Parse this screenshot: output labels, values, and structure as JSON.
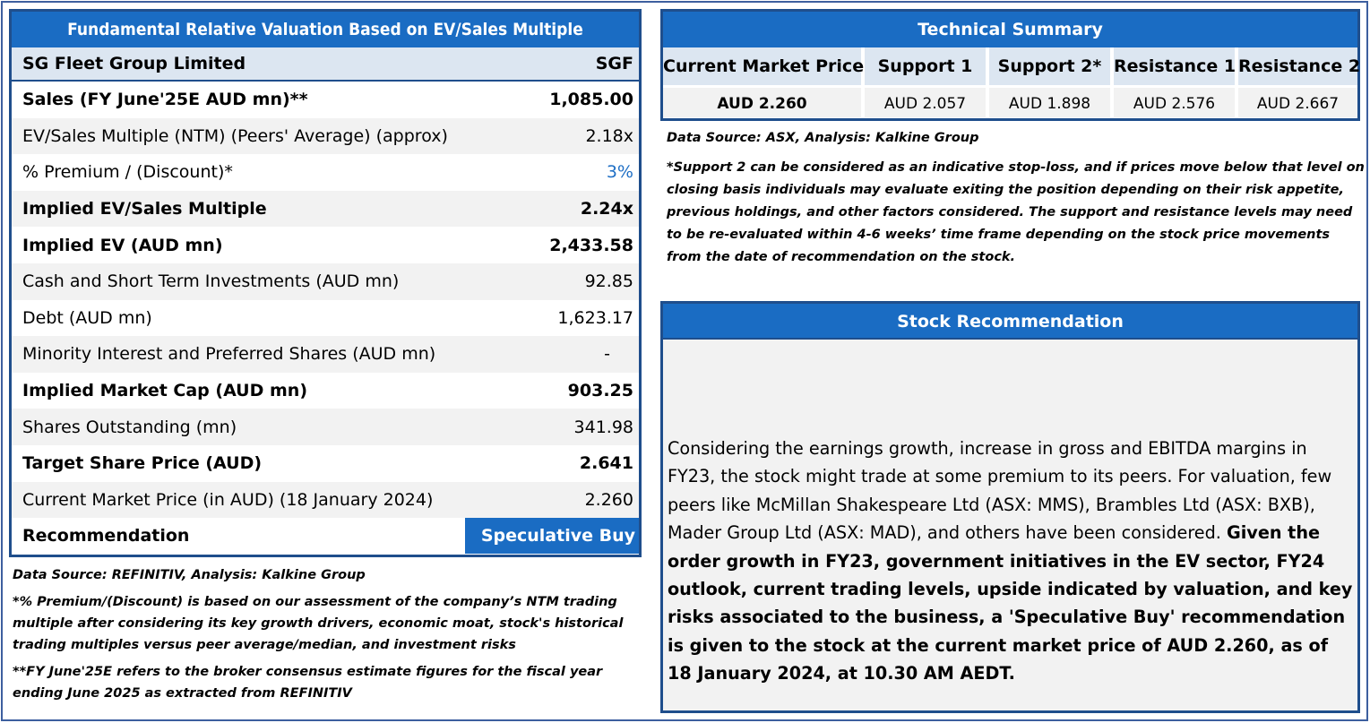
{
  "valuation": {
    "title": "Fundamental Relative Valuation Based on EV/Sales Multiple",
    "company": "SG Fleet Group Limited",
    "ticker": "SGF",
    "rows": [
      {
        "label": "Sales (FY June'25E AUD mn)**",
        "value": "1,085.00"
      },
      {
        "label": "EV/Sales Multiple (NTM)  (Peers' Average) (approx)",
        "value": "2.18x"
      },
      {
        "label": "% Premium / (Discount)*",
        "value": "3%"
      },
      {
        "label": "Implied EV/Sales Multiple",
        "value": "2.24x"
      },
      {
        "label": "Implied EV (AUD mn)",
        "value": "2,433.58"
      },
      {
        "label": "Cash and Short Term Investments (AUD mn)",
        "value": "92.85"
      },
      {
        "label": "Debt (AUD mn)",
        "value": "1,623.17"
      },
      {
        "label": "Minority Interest and Preferred Shares (AUD mn)",
        "value": "-"
      },
      {
        "label": "Implied Market Cap (AUD mn)",
        "value": "903.25"
      },
      {
        "label": "Shares Outstanding (mn)",
        "value": "341.98"
      },
      {
        "label": "Target Share Price (AUD)",
        "value": "2.641"
      },
      {
        "label": "Current Market Price (in AUD) (18 January 2024)",
        "value": "2.260"
      },
      {
        "label": "Recommendation",
        "value": "Speculative Buy"
      }
    ],
    "source": "Data Source: REFINITIV, Analysis: Kalkine Group",
    "note1": "*% Premium/(Discount) is based on our assessment of the company’s NTM trading multiple after considering its key growth drivers, economic moat, stock's historical trading multiples versus peer average/median, and investment risks",
    "note2": "**FY June'25E refers to the broker consensus estimate figures for the fiscal year ending June 2025  as extracted from REFINITIV"
  },
  "technical": {
    "title": "Technical Summary",
    "headers": [
      "Current Market Price",
      "Support 1",
      "Support 2*",
      "Resistance 1",
      "Resistance 2"
    ],
    "values": [
      "AUD 2.260",
      "AUD 2.057",
      "AUD 1.898",
      "AUD 2.576",
      "AUD 2.667"
    ],
    "source": "Data Source: ASX, Analysis: Kalkine Group",
    "note": "*Support 2 can be considered as an indicative stop-loss, and if prices move below that level on closing basis individuals may evaluate exiting the position depending on their risk appetite, previous holdings, and other factors considered. The support and resistance levels may need to be re-evaluated within 4-6 weeks’ time frame depending on the stock price movements from the date of recommendation on the stock."
  },
  "recommendation": {
    "title": "Stock Recommendation",
    "text_regular": "Considering the earnings growth, increase in gross and EBITDA margins in FY23, the stock might trade at some premium to its peers. For valuation, few peers like McMillan Shakespeare Ltd (ASX: MMS), Brambles Ltd (ASX: BXB), Mader Group Ltd (ASX: MAD), and others have been considered. ",
    "text_bold": "Given the order growth in FY23, government initiatives in the EV sector, FY24 outlook, current trading levels, upside indicated by valuation, and key risks associated to the business, a 'Speculative Buy' recommendation is given to the stock at the current market price of AUD 2.260, as of 18 January 2024, at 10.30 AM AEDT."
  },
  "colors": {
    "header_blue": "#1a6cc3",
    "border_blue": "#1f4e8c",
    "light_blue": "#dce6f1",
    "row_gray": "#f2f2f2",
    "premium_blue": "#1f6fc5"
  }
}
